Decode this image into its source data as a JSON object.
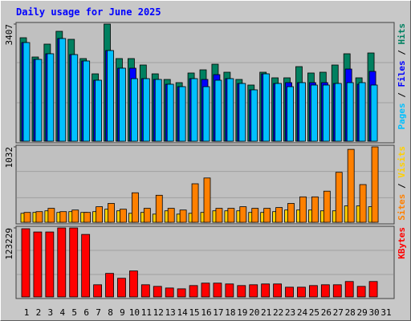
{
  "chart_data": {
    "type": "bar",
    "title": "Daily usage for June 2025",
    "categories": [
      "1",
      "2",
      "3",
      "4",
      "5",
      "6",
      "7",
      "8",
      "9",
      "10",
      "11",
      "12",
      "13",
      "14",
      "15",
      "16",
      "17",
      "18",
      "19",
      "20",
      "21",
      "22",
      "23",
      "24",
      "25",
      "26",
      "27",
      "28",
      "29",
      "30",
      "31"
    ],
    "category_colors": [
      "#008040",
      "#0000a0",
      "#0000a0",
      "#0000a0",
      "#0000a0",
      "#0000a0",
      "#008040",
      "#008040",
      "#0000a0",
      "#0000a0",
      "#0000a0",
      "#0000a0",
      "#0000a0",
      "#008040",
      "#008040",
      "#0000a0",
      "#0000a0",
      "#0000a0",
      "#0000a0",
      "#0000a0",
      "#008040",
      "#008040",
      "#0000a0",
      "#0000a0",
      "#0000a0",
      "#0000a0",
      "#0000a0",
      "#008040",
      "#008040",
      "#0000a0",
      "#0000a0"
    ],
    "separator": " / ",
    "panels": [
      {
        "ylim": [
          0,
          3407
        ],
        "yticks": [
          3407
        ],
        "series": [
          {
            "name": "Hits",
            "color": "#008060",
            "values": [
              3010,
              2450,
              2824,
              3197,
              2964,
              2404,
              1960,
              3407,
              2404,
              2404,
              2217,
              1960,
              1797,
              1704,
              1984,
              2077,
              2240,
              2007,
              1797,
              1634,
              2007,
              1844,
              1844,
              2170,
              1984,
              2007,
              2217,
              2544,
              1844,
              2567,
              0
            ]
          },
          {
            "name": "Files",
            "color": "#0000ff",
            "values": [
              2870,
              2380,
              2544,
              2987,
              2520,
              2334,
              1774,
              2637,
              2124,
              2124,
              1820,
              1797,
              1657,
              1587,
              1820,
              1797,
              1937,
              1820,
              1680,
              1494,
              1960,
              1680,
              1704,
              1704,
              1704,
              1704,
              1680,
              2100,
              1657,
              2030,
              0
            ]
          },
          {
            "name": "Pages",
            "color": "#00c0ff",
            "values": [
              2870,
              2380,
              2544,
              2987,
              2520,
              2334,
              1774,
              2637,
              2124,
              1820,
              1820,
              1797,
              1657,
              1587,
              1820,
              1587,
              1774,
              1820,
              1680,
              1494,
              1960,
              1680,
              1587,
              1704,
              1634,
              1634,
              1680,
              1704,
              1704,
              1634,
              0
            ]
          }
        ]
      },
      {
        "ylim": [
          0,
          1032
        ],
        "yticks": [
          1032
        ],
        "series": [
          {
            "name": "Visits",
            "color": "#ffd000",
            "values": [
              123,
              135,
              157,
              135,
              146,
              135,
              146,
              179,
              157,
              123,
              135,
              112,
              157,
              112,
              123,
              135,
              157,
              157,
              157,
              135,
              135,
              146,
              168,
              168,
              168,
              157,
              157,
              224,
              224,
              213,
              0
            ]
          },
          {
            "name": "Sites",
            "color": "#ff8000",
            "values": [
              135,
              146,
              191,
              146,
              168,
              135,
              213,
              258,
              179,
              404,
              191,
              370,
              191,
              168,
              527,
              606,
              191,
              191,
              213,
              191,
              191,
              202,
              258,
              348,
              348,
              426,
              684,
              998,
              516,
              1032,
              0
            ]
          }
        ]
      },
      {
        "ylim": [
          0,
          123229
        ],
        "yticks": [
          123229
        ],
        "series": [
          {
            "name": "KBytes",
            "color": "#ff0000",
            "values": [
              121779,
              115980,
              115980,
              123229,
              123229,
              111630,
              21746,
              42043,
              33344,
              46392,
              21746,
              18847,
              15947,
              14497,
              20297,
              24646,
              24646,
              23196,
              20297,
              21746,
              23196,
              23196,
              17397,
              17397,
              20297,
              21746,
              21746,
              27546,
              18847,
              27546,
              0
            ]
          }
        ]
      }
    ]
  }
}
